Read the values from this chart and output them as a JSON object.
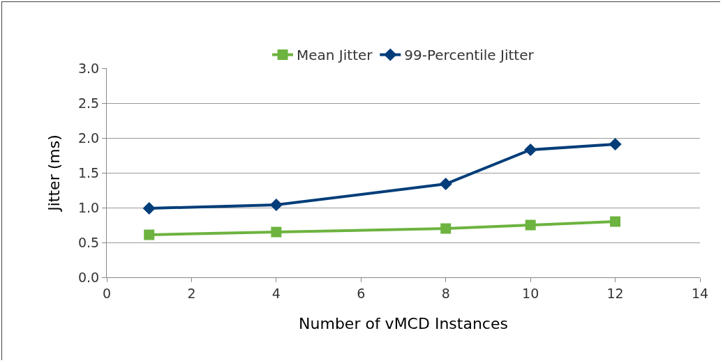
{
  "chart_data": {
    "type": "line",
    "xlabel": "Number of vMCD Instances",
    "ylabel": "Jitter (ms)",
    "x": [
      1,
      4,
      8,
      10,
      12
    ],
    "series": [
      {
        "name": "Mean Jitter",
        "color": "#6db33f",
        "marker": "square",
        "values": [
          0.61,
          0.65,
          0.7,
          0.75,
          0.8
        ]
      },
      {
        "name": "99-Percentile Jitter",
        "color": "#003d79",
        "marker": "diamond",
        "values": [
          0.99,
          1.04,
          1.34,
          1.83,
          1.91
        ]
      }
    ],
    "xlim": [
      0,
      14
    ],
    "xticks": [
      0,
      2,
      4,
      6,
      8,
      10,
      12,
      14
    ],
    "ylim": [
      0,
      3
    ],
    "yticks": [
      {
        "value": 0,
        "label": "0.0"
      },
      {
        "value": 0.5,
        "label": "0.5"
      },
      {
        "value": 1,
        "label": "1.0"
      },
      {
        "value": 1.5,
        "label": "1.5"
      },
      {
        "value": 2,
        "label": "2.0"
      },
      {
        "value": 2.5,
        "label": "2.5"
      },
      {
        "value": 3,
        "label": "3.0"
      }
    ],
    "grid": "y",
    "legend": "top",
    "line_style": "solid"
  }
}
